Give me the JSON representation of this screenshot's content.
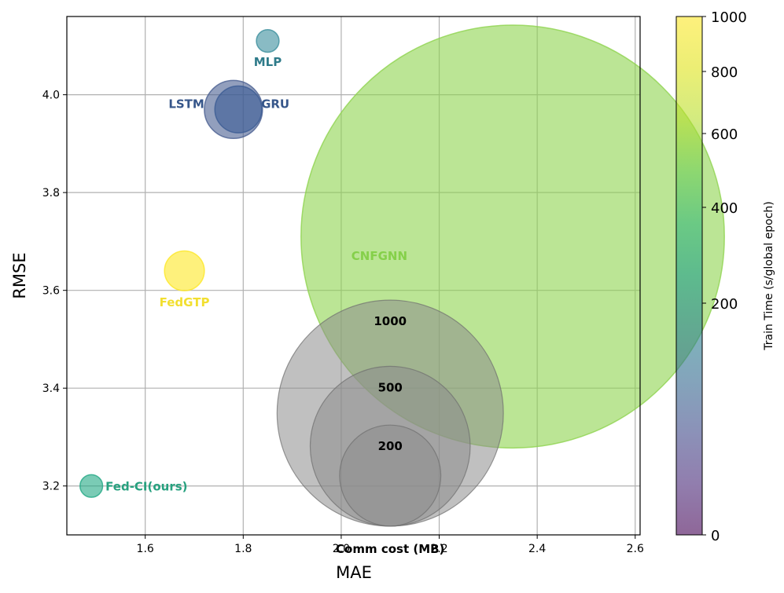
{
  "chart_data": {
    "type": "scatter",
    "subtype": "bubble",
    "xlabel": "MAE",
    "ylabel": "RMSE",
    "xlim": [
      1.44,
      2.61
    ],
    "ylim": [
      3.1,
      4.16
    ],
    "xticks": [
      1.6,
      1.8,
      2.0,
      2.2,
      2.4,
      2.6
    ],
    "yticks": [
      3.2,
      3.4,
      3.6,
      3.8,
      4.0
    ],
    "xtick_labels": [
      "1.6",
      "1.8",
      "2.0",
      "2.2",
      "2.4",
      "2.6"
    ],
    "ytick_labels": [
      "3.2",
      "3.4",
      "3.6",
      "3.8",
      "4.0"
    ],
    "grid": true,
    "points": [
      {
        "label": "MLP",
        "mae": 1.85,
        "rmse": 4.11,
        "train_time": 180,
        "comm_cost": 10,
        "color": "#3b8e9c",
        "label_color": "#2f7b8a"
      },
      {
        "label": "LSTM",
        "mae": 1.78,
        "rmse": 3.97,
        "train_time": 40,
        "comm_cost": 66,
        "color": "#4a5f91",
        "label_color": "#36568a"
      },
      {
        "label": "GRU",
        "mae": 1.79,
        "rmse": 3.97,
        "train_time": 45,
        "comm_cost": 43,
        "color": "#3b5b94",
        "label_color": "#36568a"
      },
      {
        "label": "CNFGNN",
        "mae": 2.35,
        "rmse": 3.71,
        "train_time": 720,
        "comm_cost": 3500,
        "color": "#8ed34f",
        "label_color": "#85d04a"
      },
      {
        "label": "FedGTP",
        "mae": 1.68,
        "rmse": 3.64,
        "train_time": 1000,
        "comm_cost": 31,
        "color": "#fde725",
        "label_color": "#f2df30"
      },
      {
        "label": "Fed-CI(ours)",
        "mae": 1.49,
        "rmse": 3.2,
        "train_time": 390,
        "comm_cost": 10,
        "color": "#22a884",
        "label_color": "#27a17f"
      }
    ],
    "size_legend": {
      "title": "Comm cost (MB)",
      "center_mae": 2.1,
      "base_rmse": 3.15,
      "sizes": [
        1000,
        500,
        200
      ],
      "labels": [
        "1000",
        "500",
        "200"
      ],
      "color": "#8c8c8c"
    },
    "colorbar": {
      "label": "Train Time (s/global epoch)",
      "ticks": [
        0,
        200,
        400,
        600,
        800,
        1000
      ],
      "tick_labels": [
        "0",
        "200",
        "400",
        "600",
        "800",
        "1000"
      ],
      "colormap": "viridis",
      "scale": "sqrt-like"
    }
  }
}
